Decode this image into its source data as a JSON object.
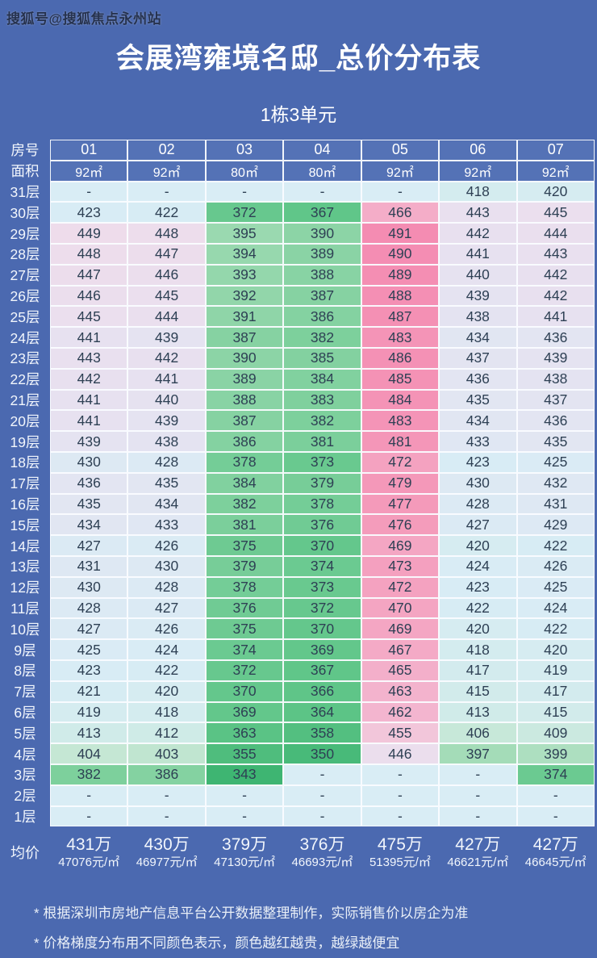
{
  "watermark": "搜狐号@搜狐焦点永州站",
  "notes": [
    "* 根据深圳市房地产信息平台公开数据整理制作，实际销售价以房企为准",
    "* 价格梯度分布用不同颜色表示，颜色越红越贵，越绿越便宜"
  ],
  "colors": {
    "page_background": "#4b69b0",
    "header_cell": "#5472b6",
    "header_text": "#ffffff",
    "cell_text": "#2e4054",
    "empty_cell": "#d9edf5",
    "grid_border": "#fafcff",
    "scale": [
      [
        343,
        "#3eb572"
      ],
      [
        358,
        "#53bf80"
      ],
      [
        367,
        "#60c689"
      ],
      [
        372,
        "#67c88e"
      ],
      [
        381,
        "#7bcf9b"
      ],
      [
        390,
        "#8cd4a6"
      ],
      [
        395,
        "#9ad9b0"
      ],
      [
        404,
        "#c5e7d4"
      ],
      [
        413,
        "#d0ebe9"
      ],
      [
        423,
        "#d8ecf5"
      ],
      [
        432,
        "#dfe8f3"
      ],
      [
        441,
        "#e7e1f0"
      ],
      [
        449,
        "#eedceb"
      ],
      [
        455,
        "#f2c6da"
      ],
      [
        463,
        "#f3b3cd"
      ],
      [
        469,
        "#f4a6c3"
      ],
      [
        477,
        "#f49aba"
      ],
      [
        491,
        "#f48cb2"
      ]
    ]
  },
  "chart_data": {
    "type": "heatmap",
    "title": "会展湾雍境名邸_总价分布表",
    "subtitle": "1栋3单元",
    "legend_note": "颜色越红越贵，越绿越便宜",
    "units_label": "万 (total price in 10k CNY)",
    "corner_labels": {
      "room": "房号",
      "area": "面积",
      "avg": "均价"
    },
    "columns": [
      "01",
      "02",
      "03",
      "04",
      "05",
      "06",
      "07"
    ],
    "areas": [
      "92㎡",
      "92㎡",
      "80㎡",
      "80㎡",
      "92㎡",
      "92㎡",
      "92㎡"
    ],
    "empty_placeholder": "-",
    "rows": [
      {
        "floor": "31层",
        "values": [
          null,
          null,
          null,
          null,
          null,
          418,
          420
        ]
      },
      {
        "floor": "30层",
        "values": [
          423,
          422,
          372,
          367,
          466,
          443,
          445
        ]
      },
      {
        "floor": "29层",
        "values": [
          449,
          448,
          395,
          390,
          491,
          442,
          444
        ]
      },
      {
        "floor": "28层",
        "values": [
          448,
          447,
          394,
          389,
          490,
          441,
          443
        ]
      },
      {
        "floor": "27层",
        "values": [
          447,
          446,
          393,
          388,
          489,
          440,
          442
        ]
      },
      {
        "floor": "26层",
        "values": [
          446,
          445,
          392,
          387,
          488,
          439,
          442
        ]
      },
      {
        "floor": "25层",
        "values": [
          445,
          444,
          391,
          386,
          487,
          438,
          441
        ]
      },
      {
        "floor": "24层",
        "values": [
          441,
          439,
          387,
          382,
          483,
          434,
          436
        ]
      },
      {
        "floor": "23层",
        "values": [
          443,
          442,
          390,
          385,
          486,
          437,
          439
        ]
      },
      {
        "floor": "22层",
        "values": [
          442,
          441,
          389,
          384,
          485,
          436,
          438
        ]
      },
      {
        "floor": "21层",
        "values": [
          441,
          440,
          388,
          383,
          484,
          435,
          437
        ]
      },
      {
        "floor": "20层",
        "values": [
          441,
          439,
          387,
          382,
          483,
          434,
          436
        ]
      },
      {
        "floor": "19层",
        "values": [
          439,
          438,
          386,
          381,
          481,
          433,
          435
        ]
      },
      {
        "floor": "18层",
        "values": [
          430,
          428,
          378,
          373,
          472,
          423,
          425
        ]
      },
      {
        "floor": "17层",
        "values": [
          436,
          435,
          384,
          379,
          479,
          430,
          432
        ]
      },
      {
        "floor": "16层",
        "values": [
          435,
          434,
          382,
          378,
          477,
          428,
          431
        ]
      },
      {
        "floor": "15层",
        "values": [
          434,
          433,
          381,
          376,
          476,
          427,
          429
        ]
      },
      {
        "floor": "14层",
        "values": [
          427,
          426,
          375,
          370,
          469,
          420,
          422
        ]
      },
      {
        "floor": "13层",
        "values": [
          431,
          430,
          379,
          374,
          473,
          424,
          426
        ]
      },
      {
        "floor": "12层",
        "values": [
          430,
          428,
          378,
          373,
          472,
          423,
          425
        ]
      },
      {
        "floor": "11层",
        "values": [
          428,
          427,
          376,
          372,
          470,
          422,
          424
        ]
      },
      {
        "floor": "10层",
        "values": [
          427,
          426,
          375,
          370,
          469,
          420,
          422
        ]
      },
      {
        "floor": "9层",
        "values": [
          425,
          424,
          374,
          369,
          467,
          418,
          420
        ]
      },
      {
        "floor": "8层",
        "values": [
          423,
          422,
          372,
          367,
          465,
          417,
          419
        ]
      },
      {
        "floor": "7层",
        "values": [
          421,
          420,
          370,
          366,
          463,
          415,
          417
        ]
      },
      {
        "floor": "6层",
        "values": [
          419,
          418,
          369,
          364,
          462,
          413,
          415
        ]
      },
      {
        "floor": "5层",
        "values": [
          413,
          412,
          363,
          358,
          455,
          406,
          409
        ]
      },
      {
        "floor": "4层",
        "values": [
          404,
          403,
          355,
          350,
          446,
          397,
          399
        ]
      },
      {
        "floor": "3层",
        "values": [
          382,
          386,
          343,
          null,
          null,
          null,
          374
        ]
      },
      {
        "floor": "2层",
        "values": [
          null,
          null,
          null,
          null,
          null,
          null,
          null
        ]
      },
      {
        "floor": "1层",
        "values": [
          null,
          null,
          null,
          null,
          null,
          null,
          null
        ]
      }
    ],
    "averages": [
      {
        "total": "431万",
        "per_sqm": "47076元/㎡"
      },
      {
        "total": "430万",
        "per_sqm": "46977元/㎡"
      },
      {
        "total": "379万",
        "per_sqm": "47130元/㎡"
      },
      {
        "total": "376万",
        "per_sqm": "46693元/㎡"
      },
      {
        "total": "475万",
        "per_sqm": "51395元/㎡"
      },
      {
        "total": "427万",
        "per_sqm": "46621元/㎡"
      },
      {
        "total": "427万",
        "per_sqm": "46645元/㎡"
      }
    ]
  }
}
